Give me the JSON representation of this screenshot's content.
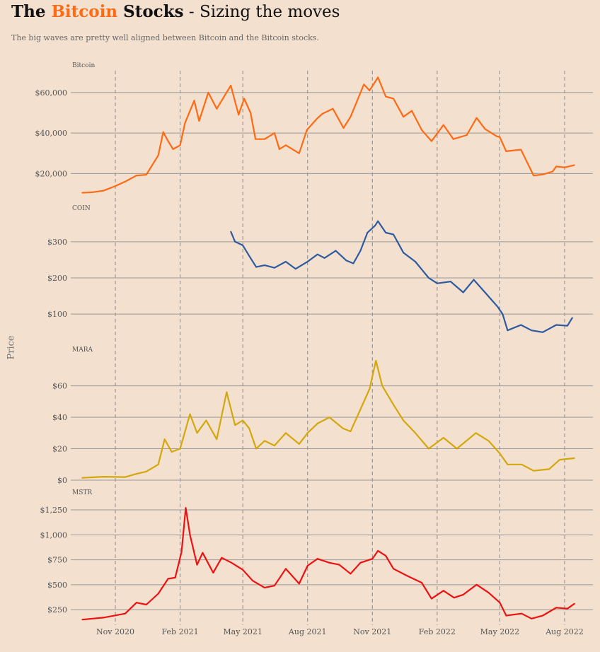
{
  "title": {
    "part1": "The ",
    "part2": "Bitcoin",
    "part3": " Stocks",
    "part4": " - Sizing the moves"
  },
  "subtitle": "The big waves are pretty well aligned between Bitcoin and the Bitcoin stocks.",
  "ylabel": "Price",
  "colors": {
    "background": "#f3e0cf",
    "accent": "#ff6a13",
    "bitcoin": "#ff6a13",
    "coin": "#2e5aa0",
    "mara": "#d4a70c",
    "mstr": "#ee1111"
  },
  "chart_data": {
    "type": "line",
    "x_axis": {
      "start": "2020-09-15",
      "end": "2022-08-15",
      "ticks": [
        {
          "date": "2020-11-01",
          "label": "Nov 2020"
        },
        {
          "date": "2021-02-01",
          "label": "Feb 2021"
        },
        {
          "date": "2021-05-01",
          "label": "May 2021"
        },
        {
          "date": "2021-08-01",
          "label": "Aug 2021"
        },
        {
          "date": "2021-11-01",
          "label": "Nov 2021"
        },
        {
          "date": "2022-02-01",
          "label": "Feb 2022"
        },
        {
          "date": "2022-05-01",
          "label": "May 2022"
        },
        {
          "date": "2022-08-01",
          "label": "Aug 2022"
        }
      ],
      "vertical_dashed_lines": true
    },
    "panels": [
      {
        "name": "Bitcoin",
        "color": "#ff6a13",
        "ylim": [
          10000,
          68000
        ],
        "yticks": [
          20000,
          40000,
          60000
        ],
        "ytick_labels": [
          "$20,000",
          "$40,000",
          "$60,000"
        ],
        "points": [
          [
            "2020-09-15",
            10500
          ],
          [
            "2020-10-01",
            10800
          ],
          [
            "2020-10-15",
            11500
          ],
          [
            "2020-11-01",
            13800
          ],
          [
            "2020-11-15",
            16000
          ],
          [
            "2020-12-01",
            19000
          ],
          [
            "2020-12-15",
            19400
          ],
          [
            "2021-01-01",
            29000
          ],
          [
            "2021-01-08",
            40500
          ],
          [
            "2021-01-15",
            36000
          ],
          [
            "2021-01-22",
            32000
          ],
          [
            "2021-02-01",
            34000
          ],
          [
            "2021-02-08",
            45000
          ],
          [
            "2021-02-21",
            56000
          ],
          [
            "2021-02-28",
            46000
          ],
          [
            "2021-03-13",
            60000
          ],
          [
            "2021-03-25",
            52000
          ],
          [
            "2021-04-14",
            63500
          ],
          [
            "2021-04-25",
            49000
          ],
          [
            "2021-05-03",
            57000
          ],
          [
            "2021-05-12",
            50000
          ],
          [
            "2021-05-19",
            37000
          ],
          [
            "2021-06-01",
            37000
          ],
          [
            "2021-06-15",
            40000
          ],
          [
            "2021-06-22",
            32000
          ],
          [
            "2021-07-01",
            34000
          ],
          [
            "2021-07-20",
            30000
          ],
          [
            "2021-07-31",
            41500
          ],
          [
            "2021-08-14",
            47000
          ],
          [
            "2021-08-22",
            49500
          ],
          [
            "2021-09-06",
            52000
          ],
          [
            "2021-09-21",
            42500
          ],
          [
            "2021-10-01",
            48000
          ],
          [
            "2021-10-20",
            64000
          ],
          [
            "2021-10-28",
            61000
          ],
          [
            "2021-11-09",
            67500
          ],
          [
            "2021-11-20",
            58000
          ],
          [
            "2021-12-01",
            57000
          ],
          [
            "2021-12-15",
            48000
          ],
          [
            "2021-12-27",
            51000
          ],
          [
            "2022-01-10",
            41500
          ],
          [
            "2022-01-24",
            36000
          ],
          [
            "2022-02-10",
            44000
          ],
          [
            "2022-02-24",
            37000
          ],
          [
            "2022-03-15",
            39000
          ],
          [
            "2022-03-29",
            47500
          ],
          [
            "2022-04-10",
            42000
          ],
          [
            "2022-04-26",
            38500
          ],
          [
            "2022-05-01",
            38000
          ],
          [
            "2022-05-10",
            31000
          ],
          [
            "2022-05-31",
            31800
          ],
          [
            "2022-06-13",
            22500
          ],
          [
            "2022-06-18",
            19000
          ],
          [
            "2022-07-01",
            19500
          ],
          [
            "2022-07-15",
            21000
          ],
          [
            "2022-07-20",
            23500
          ],
          [
            "2022-08-01",
            23000
          ],
          [
            "2022-08-15",
            24200
          ]
        ]
      },
      {
        "name": "COIN",
        "color": "#2e5aa0",
        "ylim": [
          30,
          370
        ],
        "yticks": [
          100,
          200,
          300
        ],
        "ytick_labels": [
          "$100",
          "$200",
          "$300"
        ],
        "points": [
          [
            "2021-04-14",
            328
          ],
          [
            "2021-04-20",
            300
          ],
          [
            "2021-05-01",
            290
          ],
          [
            "2021-05-12",
            255
          ],
          [
            "2021-05-20",
            230
          ],
          [
            "2021-06-01",
            235
          ],
          [
            "2021-06-15",
            228
          ],
          [
            "2021-07-01",
            245
          ],
          [
            "2021-07-15",
            225
          ],
          [
            "2021-08-01",
            245
          ],
          [
            "2021-08-15",
            265
          ],
          [
            "2021-08-25",
            255
          ],
          [
            "2021-09-10",
            275
          ],
          [
            "2021-09-25",
            248
          ],
          [
            "2021-10-05",
            240
          ],
          [
            "2021-10-15",
            275
          ],
          [
            "2021-10-25",
            325
          ],
          [
            "2021-11-05",
            345
          ],
          [
            "2021-11-09",
            357
          ],
          [
            "2021-11-20",
            325
          ],
          [
            "2021-12-01",
            320
          ],
          [
            "2021-12-15",
            270
          ],
          [
            "2022-01-01",
            245
          ],
          [
            "2022-01-20",
            200
          ],
          [
            "2022-02-01",
            185
          ],
          [
            "2022-02-20",
            190
          ],
          [
            "2022-03-10",
            160
          ],
          [
            "2022-03-25",
            195
          ],
          [
            "2022-04-10",
            160
          ],
          [
            "2022-04-28",
            120
          ],
          [
            "2022-05-05",
            100
          ],
          [
            "2022-05-12",
            55
          ],
          [
            "2022-05-31",
            70
          ],
          [
            "2022-06-15",
            55
          ],
          [
            "2022-07-01",
            50
          ],
          [
            "2022-07-20",
            70
          ],
          [
            "2022-08-05",
            68
          ],
          [
            "2022-08-12",
            90
          ]
        ]
      },
      {
        "name": "MARA",
        "color": "#d4a70c",
        "ylim": [
          0,
          76
        ],
        "yticks": [
          0,
          20,
          40,
          60
        ],
        "ytick_labels": [
          "$0",
          "$20",
          "$40",
          "$60"
        ],
        "points": [
          [
            "2020-09-15",
            1.5
          ],
          [
            "2020-10-15",
            2.2
          ],
          [
            "2020-11-15",
            2.0
          ],
          [
            "2020-12-01",
            4.0
          ],
          [
            "2020-12-15",
            5.5
          ],
          [
            "2021-01-01",
            10
          ],
          [
            "2021-01-10",
            26
          ],
          [
            "2021-01-20",
            18
          ],
          [
            "2021-02-01",
            20
          ],
          [
            "2021-02-15",
            42
          ],
          [
            "2021-02-25",
            30
          ],
          [
            "2021-03-10",
            38
          ],
          [
            "2021-03-25",
            26
          ],
          [
            "2021-04-08",
            56
          ],
          [
            "2021-04-20",
            35
          ],
          [
            "2021-05-01",
            38
          ],
          [
            "2021-05-10",
            33
          ],
          [
            "2021-05-20",
            20
          ],
          [
            "2021-06-01",
            25
          ],
          [
            "2021-06-15",
            22
          ],
          [
            "2021-07-01",
            30
          ],
          [
            "2021-07-20",
            23
          ],
          [
            "2021-08-01",
            30
          ],
          [
            "2021-08-15",
            36
          ],
          [
            "2021-09-01",
            40
          ],
          [
            "2021-09-20",
            33
          ],
          [
            "2021-10-01",
            31
          ],
          [
            "2021-10-15",
            45
          ],
          [
            "2021-10-28",
            58
          ],
          [
            "2021-11-06",
            76
          ],
          [
            "2021-11-15",
            60
          ],
          [
            "2021-12-01",
            48
          ],
          [
            "2021-12-15",
            38
          ],
          [
            "2022-01-01",
            30
          ],
          [
            "2022-01-20",
            20
          ],
          [
            "2022-02-10",
            27
          ],
          [
            "2022-03-01",
            20
          ],
          [
            "2022-03-28",
            30
          ],
          [
            "2022-04-15",
            25
          ],
          [
            "2022-05-01",
            17
          ],
          [
            "2022-05-12",
            10
          ],
          [
            "2022-06-01",
            10
          ],
          [
            "2022-06-18",
            6
          ],
          [
            "2022-07-10",
            7
          ],
          [
            "2022-07-25",
            13
          ],
          [
            "2022-08-15",
            14
          ]
        ]
      },
      {
        "name": "MSTR",
        "color": "#ee1111",
        "ylim": [
          130,
          1300
        ],
        "yticks": [
          250,
          500,
          750,
          1000,
          1250
        ],
        "ytick_labels": [
          "$250",
          "$500",
          "$750",
          "$1,000",
          "$1,250"
        ],
        "points": [
          [
            "2020-09-15",
            150
          ],
          [
            "2020-10-15",
            170
          ],
          [
            "2020-11-15",
            210
          ],
          [
            "2020-12-01",
            320
          ],
          [
            "2020-12-15",
            300
          ],
          [
            "2021-01-01",
            410
          ],
          [
            "2021-01-15",
            560
          ],
          [
            "2021-01-25",
            570
          ],
          [
            "2021-02-03",
            830
          ],
          [
            "2021-02-09",
            1270
          ],
          [
            "2021-02-15",
            1000
          ],
          [
            "2021-02-25",
            700
          ],
          [
            "2021-03-05",
            820
          ],
          [
            "2021-03-20",
            620
          ],
          [
            "2021-04-01",
            770
          ],
          [
            "2021-04-15",
            720
          ],
          [
            "2021-05-01",
            650
          ],
          [
            "2021-05-15",
            540
          ],
          [
            "2021-06-01",
            470
          ],
          [
            "2021-06-15",
            490
          ],
          [
            "2021-07-01",
            660
          ],
          [
            "2021-07-20",
            510
          ],
          [
            "2021-08-01",
            690
          ],
          [
            "2021-08-15",
            760
          ],
          [
            "2021-09-01",
            720
          ],
          [
            "2021-09-15",
            700
          ],
          [
            "2021-10-01",
            610
          ],
          [
            "2021-10-15",
            720
          ],
          [
            "2021-11-01",
            760
          ],
          [
            "2021-11-09",
            840
          ],
          [
            "2021-11-20",
            790
          ],
          [
            "2021-12-01",
            660
          ],
          [
            "2021-12-20",
            590
          ],
          [
            "2022-01-10",
            520
          ],
          [
            "2022-01-24",
            360
          ],
          [
            "2022-02-10",
            440
          ],
          [
            "2022-02-25",
            370
          ],
          [
            "2022-03-10",
            400
          ],
          [
            "2022-03-29",
            500
          ],
          [
            "2022-04-15",
            420
          ],
          [
            "2022-05-01",
            320
          ],
          [
            "2022-05-10",
            190
          ],
          [
            "2022-06-01",
            210
          ],
          [
            "2022-06-15",
            160
          ],
          [
            "2022-07-01",
            190
          ],
          [
            "2022-07-20",
            270
          ],
          [
            "2022-08-05",
            260
          ],
          [
            "2022-08-15",
            310
          ]
        ]
      }
    ]
  }
}
